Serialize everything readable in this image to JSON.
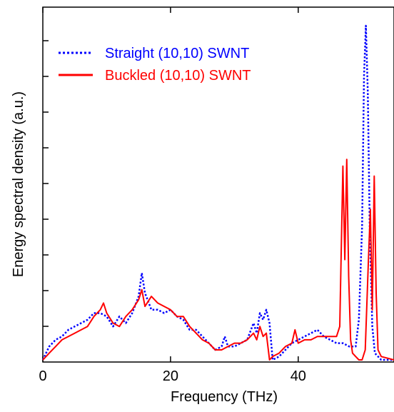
{
  "chart_data": {
    "type": "line",
    "title": "",
    "xlabel": "Frequency (THz)",
    "ylabel": "Energy spectral density (a.u.)",
    "xlim": [
      0,
      55
    ],
    "ylim": [
      0,
      1
    ],
    "x_ticks": [
      0,
      20,
      40
    ],
    "x_tick_labels": [
      "0",
      "20",
      "40"
    ],
    "y_tick_labels": [],
    "grid": false,
    "legend_position": "top-left",
    "series": [
      {
        "name": "Straight (10,10) SWNT",
        "color": "#0000ff",
        "style": "dotted",
        "x": [
          0.0,
          0.5,
          1.0,
          2.0,
          3.0,
          4.0,
          5.0,
          6.0,
          7.0,
          8.0,
          9.0,
          10.0,
          11.0,
          12.0,
          13.0,
          14.0,
          15.0,
          15.5,
          16.0,
          17.0,
          18.0,
          19.0,
          20.0,
          21.0,
          22.0,
          23.0,
          24.0,
          25.0,
          26.0,
          27.0,
          28.0,
          28.5,
          29.0,
          30.0,
          31.0,
          32.0,
          33.0,
          33.5,
          34.0,
          34.5,
          35.0,
          35.5,
          36.0,
          37.0,
          38.0,
          39.0,
          40.0,
          41.0,
          42.0,
          43.0,
          44.0,
          45.0,
          46.0,
          47.0,
          48.0,
          49.0,
          49.5,
          50.0,
          50.3,
          50.6,
          50.9,
          51.2,
          51.6,
          52.0,
          53.0,
          55.0
        ],
        "y": [
          0.0,
          0.02,
          0.04,
          0.06,
          0.07,
          0.09,
          0.1,
          0.11,
          0.12,
          0.14,
          0.14,
          0.13,
          0.1,
          0.13,
          0.11,
          0.14,
          0.19,
          0.26,
          0.2,
          0.15,
          0.15,
          0.14,
          0.15,
          0.13,
          0.12,
          0.09,
          0.09,
          0.07,
          0.05,
          0.03,
          0.04,
          0.07,
          0.04,
          0.04,
          0.05,
          0.06,
          0.11,
          0.08,
          0.14,
          0.12,
          0.15,
          0.11,
          0.0,
          0.01,
          0.03,
          0.05,
          0.06,
          0.07,
          0.08,
          0.09,
          0.07,
          0.06,
          0.05,
          0.05,
          0.04,
          0.04,
          0.12,
          0.4,
          0.85,
          1.0,
          0.8,
          0.4,
          0.1,
          0.02,
          0.0,
          0.0
        ]
      },
      {
        "name": "Buckled (10,10) SWNT",
        "color": "#ff0000",
        "style": "solid",
        "x": [
          0.0,
          0.5,
          1.0,
          2.0,
          3.0,
          4.0,
          5.0,
          6.0,
          7.0,
          8.0,
          9.0,
          9.5,
          10.0,
          11.0,
          12.0,
          13.0,
          14.0,
          15.0,
          15.5,
          16.0,
          17.0,
          18.0,
          19.0,
          20.0,
          21.0,
          22.0,
          23.0,
          24.0,
          25.0,
          26.0,
          27.0,
          28.0,
          29.0,
          30.0,
          31.0,
          32.0,
          33.0,
          33.5,
          34.0,
          34.5,
          35.0,
          35.5,
          36.0,
          37.0,
          38.0,
          39.0,
          39.5,
          40.0,
          41.0,
          42.0,
          43.0,
          44.0,
          45.0,
          46.0,
          46.5,
          47.0,
          47.3,
          47.6,
          47.9,
          48.2,
          48.5,
          49.0,
          49.5,
          50.0,
          50.5,
          51.0,
          51.3,
          51.6,
          51.9,
          52.2,
          52.5,
          53.0,
          55.0
        ],
        "y": [
          0.0,
          0.01,
          0.02,
          0.04,
          0.06,
          0.07,
          0.08,
          0.09,
          0.1,
          0.13,
          0.15,
          0.17,
          0.14,
          0.11,
          0.1,
          0.13,
          0.15,
          0.18,
          0.21,
          0.16,
          0.19,
          0.17,
          0.16,
          0.15,
          0.13,
          0.13,
          0.1,
          0.08,
          0.06,
          0.05,
          0.03,
          0.03,
          0.04,
          0.05,
          0.05,
          0.06,
          0.08,
          0.06,
          0.1,
          0.07,
          0.08,
          0.0,
          0.01,
          0.02,
          0.04,
          0.05,
          0.09,
          0.05,
          0.06,
          0.06,
          0.07,
          0.07,
          0.07,
          0.07,
          0.1,
          0.58,
          0.3,
          0.6,
          0.25,
          0.06,
          0.02,
          0.01,
          0.0,
          0.0,
          0.03,
          0.3,
          0.45,
          0.15,
          0.55,
          0.2,
          0.03,
          0.01,
          0.0
        ]
      }
    ]
  }
}
